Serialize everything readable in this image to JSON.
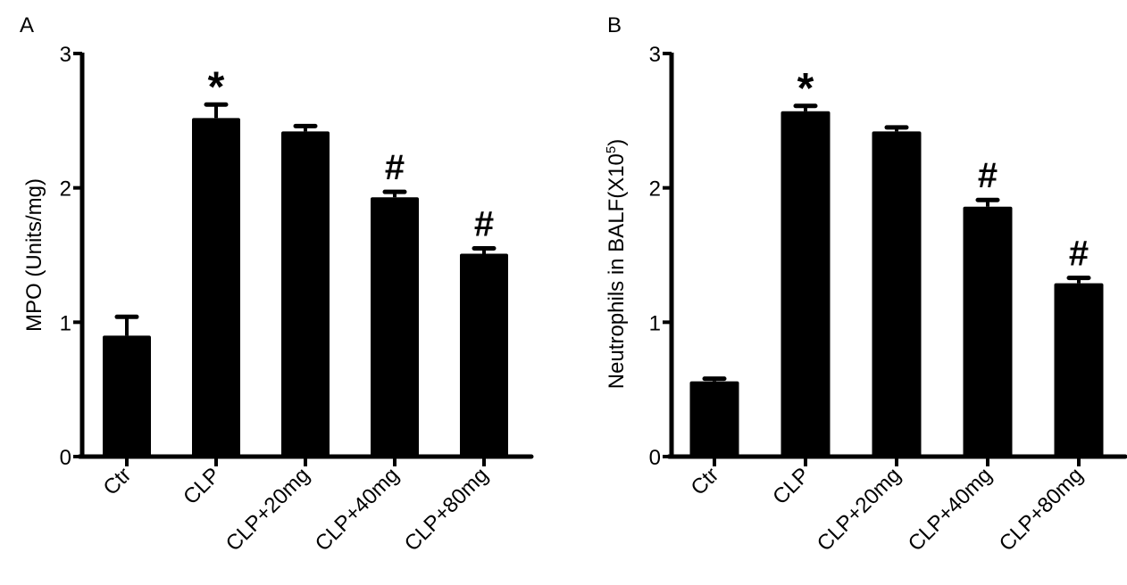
{
  "chart_data": [
    {
      "type": "bar",
      "panel_label": "A",
      "title": "",
      "xlabel": "",
      "ylabel": "MPO (Units/mg)",
      "ylim": [
        0,
        3
      ],
      "yticks": [
        "0",
        "1",
        "2",
        "3"
      ],
      "categories": [
        "Ctr",
        "CLP",
        "CLP+20mg",
        "CLP+40mg",
        "CLP+80mg"
      ],
      "values": [
        0.9,
        2.52,
        2.42,
        1.93,
        1.51
      ],
      "error": [
        0.14,
        0.1,
        0.04,
        0.04,
        0.04
      ],
      "annotations": [
        "",
        "*",
        "",
        "#",
        "#"
      ],
      "grid": false,
      "color": "#000000"
    },
    {
      "type": "bar",
      "panel_label": "B",
      "title": "",
      "xlabel": "",
      "ylabel": "Neutrophils in BALF(X10",
      "ylabel_sup": "5",
      "ylabel_end": ")",
      "ylim": [
        0,
        3
      ],
      "yticks": [
        "0",
        "1",
        "2",
        "3"
      ],
      "categories": [
        "Ctr",
        "CLP",
        "CLP+20mg",
        "CLP+40mg",
        "CLP+80mg"
      ],
      "values": [
        0.56,
        2.57,
        2.42,
        1.86,
        1.29
      ],
      "error": [
        0.02,
        0.04,
        0.03,
        0.05,
        0.04
      ],
      "annotations": [
        "",
        "*",
        "",
        "#",
        "#"
      ],
      "grid": false,
      "color": "#000000"
    }
  ]
}
